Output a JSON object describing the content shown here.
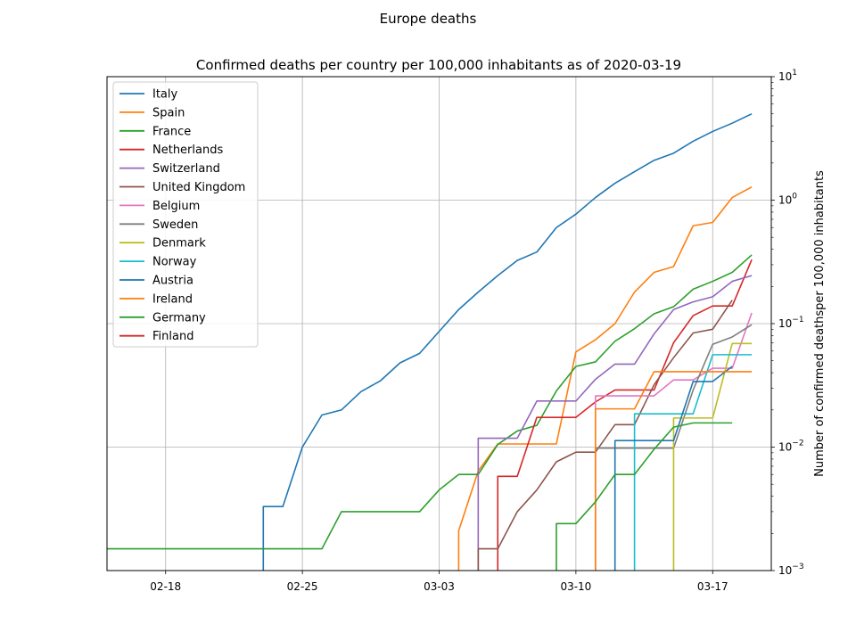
{
  "figure": {
    "suptitle": "Europe deaths"
  },
  "chart_data": {
    "type": "line",
    "title": "Confirmed deaths per country per 100,000 inhabitants as of 2020-03-19",
    "xlabel": "",
    "ylabel": "Number of confirmed deathsper 100,000 inhabitants",
    "x_axis_type": "date",
    "xlim": [
      "2020-02-15",
      "2020-03-20"
    ],
    "ylim": [
      0.001,
      10
    ],
    "yscale": "log",
    "y_axis_side": "right",
    "grid": true,
    "legend_position": "upper left",
    "x_ticks": [
      {
        "date": "2020-02-18",
        "label": "02-18"
      },
      {
        "date": "2020-02-25",
        "label": "02-25"
      },
      {
        "date": "2020-03-03",
        "label": "03-03"
      },
      {
        "date": "2020-03-10",
        "label": "03-10"
      },
      {
        "date": "2020-03-17",
        "label": "03-17"
      }
    ],
    "y_ticks": [
      {
        "value": 0.001,
        "base": "10",
        "exp": "−3"
      },
      {
        "value": 0.01,
        "base": "10",
        "exp": "−2"
      },
      {
        "value": 0.1,
        "base": "10",
        "exp": "−1"
      },
      {
        "value": 1,
        "base": "10",
        "exp": "0"
      },
      {
        "value": 10,
        "base": "10",
        "exp": "1"
      }
    ],
    "series": [
      {
        "name": "Italy",
        "color": "#1f77b4",
        "points": [
          [
            "2020-02-23",
            0.001
          ],
          [
            "2020-02-23",
            0.0033
          ],
          [
            "2020-02-24",
            0.0033
          ],
          [
            "2020-02-25",
            0.01
          ],
          [
            "2020-02-26",
            0.0182
          ],
          [
            "2020-02-27",
            0.02
          ],
          [
            "2020-02-28",
            0.0281
          ],
          [
            "2020-02-29",
            0.0345
          ],
          [
            "2020-03-01",
            0.0481
          ],
          [
            "2020-03-02",
            0.0574
          ],
          [
            "2020-03-03",
            0.0865
          ],
          [
            "2020-03-04",
            0.13
          ],
          [
            "2020-03-05",
            0.18
          ],
          [
            "2020-03-06",
            0.245
          ],
          [
            "2020-03-07",
            0.325
          ],
          [
            "2020-03-08",
            0.38
          ],
          [
            "2020-03-09",
            0.6
          ],
          [
            "2020-03-10",
            0.77
          ],
          [
            "2020-03-11",
            1.05
          ],
          [
            "2020-03-12",
            1.37
          ],
          [
            "2020-03-13",
            1.7
          ],
          [
            "2020-03-14",
            2.1
          ],
          [
            "2020-03-15",
            2.4
          ],
          [
            "2020-03-16",
            3.0
          ],
          [
            "2020-03-17",
            3.6
          ],
          [
            "2020-03-18",
            4.2
          ],
          [
            "2020-03-19",
            5.0
          ]
        ]
      },
      {
        "name": "Spain",
        "color": "#ff7f0e",
        "points": [
          [
            "2020-03-04",
            0.001
          ],
          [
            "2020-03-04",
            0.0021
          ],
          [
            "2020-03-05",
            0.0064
          ],
          [
            "2020-03-06",
            0.0106
          ],
          [
            "2020-03-07",
            0.0106
          ],
          [
            "2020-03-08",
            0.0106
          ],
          [
            "2020-03-09",
            0.0106
          ],
          [
            "2020-03-10",
            0.059
          ],
          [
            "2020-03-11",
            0.074
          ],
          [
            "2020-03-12",
            0.1
          ],
          [
            "2020-03-13",
            0.18
          ],
          [
            "2020-03-14",
            0.26
          ],
          [
            "2020-03-15",
            0.29
          ],
          [
            "2020-03-16",
            0.62
          ],
          [
            "2020-03-17",
            0.66
          ],
          [
            "2020-03-18",
            1.05
          ],
          [
            "2020-03-19",
            1.28
          ]
        ]
      },
      {
        "name": "France",
        "color": "#2ca02c",
        "points": [
          [
            "2020-02-15",
            0.0015
          ],
          [
            "2020-02-26",
            0.0015
          ],
          [
            "2020-02-27",
            0.003
          ],
          [
            "2020-03-01",
            0.003
          ],
          [
            "2020-03-02",
            0.003
          ],
          [
            "2020-03-03",
            0.0045
          ],
          [
            "2020-03-04",
            0.006
          ],
          [
            "2020-03-05",
            0.006
          ],
          [
            "2020-03-06",
            0.0105
          ],
          [
            "2020-03-07",
            0.0135
          ],
          [
            "2020-03-08",
            0.015
          ],
          [
            "2020-03-09",
            0.0285
          ],
          [
            "2020-03-10",
            0.045
          ],
          [
            "2020-03-11",
            0.049
          ],
          [
            "2020-03-12",
            0.072
          ],
          [
            "2020-03-13",
            0.091
          ],
          [
            "2020-03-14",
            0.12
          ],
          [
            "2020-03-15",
            0.137
          ],
          [
            "2020-03-16",
            0.19
          ],
          [
            "2020-03-17",
            0.22
          ],
          [
            "2020-03-18",
            0.26
          ],
          [
            "2020-03-19",
            0.36
          ]
        ]
      },
      {
        "name": "Netherlands",
        "color": "#d62728",
        "points": [
          [
            "2020-03-06",
            0.001
          ],
          [
            "2020-03-06",
            0.0058
          ],
          [
            "2020-03-07",
            0.0058
          ],
          [
            "2020-03-08",
            0.0174
          ],
          [
            "2020-03-09",
            0.0174
          ],
          [
            "2020-03-10",
            0.0174
          ],
          [
            "2020-03-11",
            0.0232
          ],
          [
            "2020-03-12",
            0.029
          ],
          [
            "2020-03-13",
            0.029
          ],
          [
            "2020-03-14",
            0.029
          ],
          [
            "2020-03-15",
            0.07
          ],
          [
            "2020-03-16",
            0.116
          ],
          [
            "2020-03-17",
            0.139
          ],
          [
            "2020-03-18",
            0.139
          ],
          [
            "2020-03-19",
            0.33
          ]
        ]
      },
      {
        "name": "Switzerland",
        "color": "#9467bd",
        "points": [
          [
            "2020-03-05",
            0.001
          ],
          [
            "2020-03-05",
            0.0118
          ],
          [
            "2020-03-06",
            0.0118
          ],
          [
            "2020-03-07",
            0.0118
          ],
          [
            "2020-03-08",
            0.0236
          ],
          [
            "2020-03-09",
            0.0236
          ],
          [
            "2020-03-10",
            0.0236
          ],
          [
            "2020-03-11",
            0.0354
          ],
          [
            "2020-03-12",
            0.047
          ],
          [
            "2020-03-13",
            0.047
          ],
          [
            "2020-03-14",
            0.0825
          ],
          [
            "2020-03-15",
            0.13
          ],
          [
            "2020-03-16",
            0.15
          ],
          [
            "2020-03-17",
            0.165
          ],
          [
            "2020-03-18",
            0.22
          ],
          [
            "2020-03-19",
            0.245
          ]
        ]
      },
      {
        "name": "United Kingdom",
        "color": "#8c564b",
        "points": [
          [
            "2020-03-05",
            0.001
          ],
          [
            "2020-03-05",
            0.0015
          ],
          [
            "2020-03-06",
            0.0015
          ],
          [
            "2020-03-07",
            0.003
          ],
          [
            "2020-03-08",
            0.0045
          ],
          [
            "2020-03-09",
            0.0076
          ],
          [
            "2020-03-10",
            0.0091
          ],
          [
            "2020-03-11",
            0.0091
          ],
          [
            "2020-03-12",
            0.0152
          ],
          [
            "2020-03-13",
            0.0152
          ],
          [
            "2020-03-14",
            0.032
          ],
          [
            "2020-03-15",
            0.053
          ],
          [
            "2020-03-16",
            0.084
          ],
          [
            "2020-03-17",
            0.09
          ],
          [
            "2020-03-18",
            0.155
          ]
        ]
      },
      {
        "name": "Belgium",
        "color": "#e377c2",
        "points": [
          [
            "2020-03-11",
            0.001
          ],
          [
            "2020-03-11",
            0.026
          ],
          [
            "2020-03-12",
            0.026
          ],
          [
            "2020-03-13",
            0.026
          ],
          [
            "2020-03-14",
            0.026
          ],
          [
            "2020-03-15",
            0.035
          ],
          [
            "2020-03-16",
            0.035
          ],
          [
            "2020-03-17",
            0.0435
          ],
          [
            "2020-03-18",
            0.0435
          ],
          [
            "2020-03-19",
            0.122
          ]
        ]
      },
      {
        "name": "Sweden",
        "color": "#7f7f7f",
        "points": [
          [
            "2020-03-11",
            0.001
          ],
          [
            "2020-03-11",
            0.0098
          ],
          [
            "2020-03-12",
            0.0098
          ],
          [
            "2020-03-13",
            0.0098
          ],
          [
            "2020-03-14",
            0.0098
          ],
          [
            "2020-03-15",
            0.0098
          ],
          [
            "2020-03-16",
            0.029
          ],
          [
            "2020-03-17",
            0.068
          ],
          [
            "2020-03-18",
            0.078
          ],
          [
            "2020-03-19",
            0.098
          ]
        ]
      },
      {
        "name": "Denmark",
        "color": "#bcbd22",
        "points": [
          [
            "2020-03-15",
            0.001
          ],
          [
            "2020-03-15",
            0.0172
          ],
          [
            "2020-03-16",
            0.0172
          ],
          [
            "2020-03-17",
            0.0172
          ],
          [
            "2020-03-18",
            0.069
          ],
          [
            "2020-03-19",
            0.069
          ]
        ]
      },
      {
        "name": "Norway",
        "color": "#17becf",
        "points": [
          [
            "2020-03-13",
            0.001
          ],
          [
            "2020-03-13",
            0.0186
          ],
          [
            "2020-03-14",
            0.0186
          ],
          [
            "2020-03-15",
            0.0186
          ],
          [
            "2020-03-16",
            0.0186
          ],
          [
            "2020-03-17",
            0.056
          ],
          [
            "2020-03-18",
            0.056
          ],
          [
            "2020-03-19",
            0.056
          ]
        ]
      },
      {
        "name": "Austria",
        "color": "#1f77b4",
        "points": [
          [
            "2020-03-12",
            0.001
          ],
          [
            "2020-03-12",
            0.0113
          ],
          [
            "2020-03-13",
            0.0113
          ],
          [
            "2020-03-14",
            0.0113
          ],
          [
            "2020-03-15",
            0.0113
          ],
          [
            "2020-03-16",
            0.034
          ],
          [
            "2020-03-17",
            0.034
          ],
          [
            "2020-03-18",
            0.045
          ]
        ]
      },
      {
        "name": "Ireland",
        "color": "#ff7f0e",
        "points": [
          [
            "2020-03-11",
            0.001
          ],
          [
            "2020-03-11",
            0.0204
          ],
          [
            "2020-03-12",
            0.0204
          ],
          [
            "2020-03-13",
            0.0204
          ],
          [
            "2020-03-14",
            0.0408
          ],
          [
            "2020-03-15",
            0.0408
          ],
          [
            "2020-03-16",
            0.0408
          ],
          [
            "2020-03-17",
            0.0408
          ],
          [
            "2020-03-18",
            0.0408
          ],
          [
            "2020-03-19",
            0.0408
          ]
        ]
      },
      {
        "name": "Germany",
        "color": "#2ca02c",
        "points": [
          [
            "2020-03-09",
            0.001
          ],
          [
            "2020-03-09",
            0.0024
          ],
          [
            "2020-03-10",
            0.0024
          ],
          [
            "2020-03-11",
            0.0036
          ],
          [
            "2020-03-12",
            0.006
          ],
          [
            "2020-03-13",
            0.006
          ],
          [
            "2020-03-14",
            0.0096
          ],
          [
            "2020-03-15",
            0.0145
          ],
          [
            "2020-03-16",
            0.0157
          ],
          [
            "2020-03-17",
            0.0157
          ],
          [
            "2020-03-18",
            0.0157
          ]
        ]
      },
      {
        "name": "Finland",
        "color": "#d62728",
        "points": []
      }
    ]
  }
}
